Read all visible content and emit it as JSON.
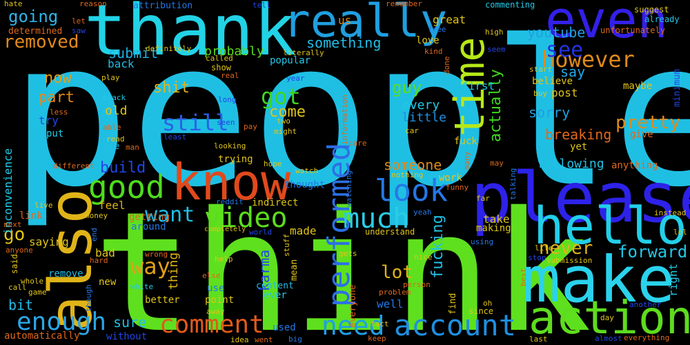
{
  "words": [
    {
      "text": "people",
      "color": "#1fbfe3"
    },
    {
      "text": "think",
      "color": "#5ee01e"
    },
    {
      "text": "thank",
      "color": "#22d3e6"
    },
    {
      "text": "please",
      "color": "#2d22e8"
    },
    {
      "text": "make",
      "color": "#2ad2ec"
    },
    {
      "text": "know",
      "color": "#e04a1c"
    },
    {
      "text": "also",
      "color": "#e0b418"
    },
    {
      "text": "really",
      "color": "#1f9fe0"
    },
    {
      "text": "even",
      "color": "#3320e8"
    },
    {
      "text": "hello",
      "color": "#22cfe8"
    },
    {
      "text": "action",
      "color": "#5edc1e"
    },
    {
      "text": "time",
      "color": "#b6e818"
    },
    {
      "text": "good",
      "color": "#4fdc1e"
    },
    {
      "text": "look",
      "color": "#2478e6"
    },
    {
      "text": "account",
      "color": "#1f8fe0"
    },
    {
      "text": "performed",
      "color": "#2c6fe6"
    },
    {
      "text": "comment",
      "color": "#e05a1c"
    },
    {
      "text": "enough",
      "color": "#2aa6e6"
    },
    {
      "text": "need",
      "color": "#1f9fe6"
    },
    {
      "text": "video",
      "color": "#5cdc1e"
    },
    {
      "text": "much",
      "color": "#2acce6"
    },
    {
      "text": "however",
      "color": "#e08a1c"
    },
    {
      "text": "see",
      "color": "#2232e0"
    },
    {
      "text": "still",
      "color": "#2a60e6"
    },
    {
      "text": "want",
      "color": "#22bde6"
    },
    {
      "text": "way",
      "color": "#e0a018"
    },
    {
      "text": "going",
      "color": "#2eb4ea"
    },
    {
      "text": "removed",
      "color": "#e08a1c"
    },
    {
      "text": "youtube",
      "color": "#1f9fe0"
    },
    {
      "text": "forward",
      "color": "#22c8e6"
    },
    {
      "text": "never",
      "color": "#e0b418"
    },
    {
      "text": "pretty",
      "color": "#e08a1c"
    },
    {
      "text": "breaking",
      "color": "#e0681c"
    },
    {
      "text": "actually",
      "color": "#3ed61e"
    },
    {
      "text": "got",
      "color": "#3ed61e"
    },
    {
      "text": "come",
      "color": "#e0c418"
    },
    {
      "text": "shit",
      "color": "#e0b418"
    },
    {
      "text": "part",
      "color": "#e08a1c"
    },
    {
      "text": "now",
      "color": "#e0a018"
    },
    {
      "text": "submit",
      "color": "#1faee0"
    },
    {
      "text": "something",
      "color": "#22bde6"
    },
    {
      "text": "probably",
      "color": "#5cdc1e"
    },
    {
      "text": "say",
      "color": "#22a8e6"
    },
    {
      "text": "sorry",
      "color": "#1f9fe0"
    },
    {
      "text": "guy",
      "color": "#5cdc1e"
    },
    {
      "text": "lot",
      "color": "#e0b418"
    },
    {
      "text": "fucking",
      "color": "#22c0e6"
    },
    {
      "text": "karma",
      "color": "#2246e6"
    },
    {
      "text": "someone",
      "color": "#e08a1c"
    },
    {
      "text": "following",
      "color": "#22c0e6"
    },
    {
      "text": "build",
      "color": "#2246e6"
    },
    {
      "text": "go",
      "color": "#e0c418"
    },
    {
      "text": "bit",
      "color": "#22bde6"
    },
    {
      "text": "sure",
      "color": "#22bde6"
    },
    {
      "text": "thing",
      "color": "#e0b418"
    },
    {
      "text": "inconvenience",
      "color": "#22c8e6"
    },
    {
      "text": "every",
      "color": "#22c8e6"
    },
    {
      "text": "little",
      "color": "#1f8fe0"
    },
    {
      "text": "first",
      "color": "#22c8e6"
    },
    {
      "text": "great",
      "color": "#e0c418"
    },
    {
      "text": "us",
      "color": "#e08a1c"
    },
    {
      "text": "determined",
      "color": "#e06a1c"
    },
    {
      "text": "popular",
      "color": "#22c8e6"
    },
    {
      "text": "love",
      "color": "#e0c418"
    },
    {
      "text": "old",
      "color": "#e0c418"
    },
    {
      "text": "back",
      "color": "#22bde6"
    },
    {
      "text": "try",
      "color": "#2246e6"
    },
    {
      "text": "put",
      "color": "#22c8e6"
    },
    {
      "text": "page",
      "color": "#22bde6"
    },
    {
      "text": "feel",
      "color": "#e0b418"
    },
    {
      "text": "getting",
      "color": "#e0681c"
    },
    {
      "text": "around",
      "color": "#2278e6"
    },
    {
      "text": "saying",
      "color": "#e0c418"
    },
    {
      "text": "link",
      "color": "#e0681c"
    },
    {
      "text": "made",
      "color": "#e0c418"
    },
    {
      "text": "take",
      "color": "#e0c418"
    },
    {
      "text": "making",
      "color": "#e0c418"
    },
    {
      "text": "believe",
      "color": "#e0c418"
    },
    {
      "text": "maybe",
      "color": "#e0c418"
    },
    {
      "text": "post",
      "color": "#e0c418"
    },
    {
      "text": "yet",
      "color": "#e0c418"
    },
    {
      "text": "give",
      "color": "#e0681c"
    },
    {
      "text": "anything",
      "color": "#e0681c"
    },
    {
      "text": "right",
      "color": "#22c8e6"
    },
    {
      "text": "bad",
      "color": "#e0c418"
    },
    {
      "text": "remove",
      "color": "#22bde6"
    },
    {
      "text": "new",
      "color": "#e0c418"
    },
    {
      "text": "better",
      "color": "#e0c418"
    },
    {
      "text": "point",
      "color": "#e0c418"
    },
    {
      "text": "ever",
      "color": "#22c8e6"
    },
    {
      "text": "content",
      "color": "#22bde6"
    },
    {
      "text": "use",
      "color": "#2278e6"
    },
    {
      "text": "well",
      "color": "#2278e6"
    },
    {
      "text": "find",
      "color": "#e0c418"
    },
    {
      "text": "used",
      "color": "#2278e6"
    },
    {
      "text": "without",
      "color": "#2246e6"
    },
    {
      "text": "automatically",
      "color": "#e0681c"
    },
    {
      "text": "fuck",
      "color": "#e0c418"
    },
    {
      "text": "trying",
      "color": "#e0c418"
    },
    {
      "text": "thought",
      "color": "#2278e6"
    },
    {
      "text": "indirect",
      "color": "#e0c418"
    },
    {
      "text": "work",
      "color": "#e0c418"
    },
    {
      "text": "everyone",
      "color": "#e0681c"
    },
    {
      "text": "mean",
      "color": "#e0c418"
    },
    {
      "text": "attribution",
      "color": "#2278e6"
    },
    {
      "text": "commenting",
      "color": "#22c8e6"
    },
    {
      "text": "already",
      "color": "#22c8e6"
    },
    {
      "text": "suggest",
      "color": "#e0c418"
    },
    {
      "text": "unfortunately",
      "color": "#e0681c"
    },
    {
      "text": "minimum",
      "color": "#2246e6"
    },
    {
      "text": "hate",
      "color": "#e0c418"
    },
    {
      "text": "reason",
      "color": "#e0681c"
    },
    {
      "text": "tell",
      "color": "#2246e6"
    },
    {
      "text": "remember",
      "color": "#e0681c"
    },
    {
      "text": "let",
      "color": "#e0681c"
    },
    {
      "text": "saw",
      "color": "#2246e6"
    },
    {
      "text": "free",
      "color": "#2278e6"
    },
    {
      "text": "high",
      "color": "#e0c418"
    },
    {
      "text": "kind",
      "color": "#e0681c"
    },
    {
      "text": "definitely",
      "color": "#e0c418"
    },
    {
      "text": "called",
      "color": "#e0c418"
    },
    {
      "text": "literally",
      "color": "#e0c418"
    },
    {
      "text": "play",
      "color": "#e0c418"
    },
    {
      "text": "real",
      "color": "#e0681c"
    },
    {
      "text": "year",
      "color": "#2246e6"
    },
    {
      "text": "show",
      "color": "#e0c418"
    },
    {
      "text": "long",
      "color": "#2246e6"
    },
    {
      "text": "black",
      "color": "#22c8e6"
    },
    {
      "text": "less",
      "color": "#e0681c"
    },
    {
      "text": "able",
      "color": "#e0681c"
    },
    {
      "text": "read",
      "color": "#e0c418"
    },
    {
      "text": "man",
      "color": "#e0681c"
    },
    {
      "text": "seen",
      "color": "#2246e6"
    },
    {
      "text": "least",
      "color": "#2246e6"
    },
    {
      "text": "pay",
      "color": "#e0681c"
    },
    {
      "text": "two",
      "color": "#e0c418"
    },
    {
      "text": "might",
      "color": "#e0c418"
    },
    {
      "text": "looking",
      "color": "#e0c418"
    },
    {
      "text": "care",
      "color": "#e0681c"
    },
    {
      "text": "car",
      "color": "#e0c418"
    },
    {
      "text": "information",
      "color": "#e0681c"
    },
    {
      "text": "hope",
      "color": "#e0c418"
    },
    {
      "text": "watch",
      "color": "#e0c418"
    },
    {
      "text": "watching",
      "color": "#2278e6"
    },
    {
      "text": "nothing",
      "color": "#e0c418"
    },
    {
      "text": "funny",
      "color": "#e0681c"
    },
    {
      "text": "many",
      "color": "#e0681c"
    },
    {
      "text": "may",
      "color": "#e0681c"
    },
    {
      "text": "talking",
      "color": "#2278e6"
    },
    {
      "text": "far",
      "color": "#e0c418"
    },
    {
      "text": "different",
      "color": "#e0681c"
    },
    {
      "text": "live",
      "color": "#e0c418"
    },
    {
      "text": "money",
      "color": "#e0c418"
    },
    {
      "text": "next",
      "color": "#e0681c"
    },
    {
      "text": "end",
      "color": "#2278e6"
    },
    {
      "text": "reddit",
      "color": "#2278e6"
    },
    {
      "text": "completely",
      "color": "#e0c418"
    },
    {
      "text": "world",
      "color": "#2246e6"
    },
    {
      "text": "understand",
      "color": "#e0c418"
    },
    {
      "text": "yeah",
      "color": "#2278e6"
    },
    {
      "text": "using",
      "color": "#2278e6"
    },
    {
      "text": "instead",
      "color": "#e0c418"
    },
    {
      "text": "lol",
      "color": "#e0c418"
    },
    {
      "text": "life",
      "color": "#e0c418"
    },
    {
      "text": "stop",
      "color": "#2246e6"
    },
    {
      "text": "submission",
      "color": "#e0c418"
    },
    {
      "text": "anyone",
      "color": "#e0681c"
    },
    {
      "text": "wrong",
      "color": "#e0681c"
    },
    {
      "text": "hard",
      "color": "#e0681c"
    },
    {
      "text": "said",
      "color": "#e0c418"
    },
    {
      "text": "whole",
      "color": "#e0c418"
    },
    {
      "text": "call",
      "color": "#e0c418"
    },
    {
      "text": "game",
      "color": "#e0c418"
    },
    {
      "text": "though",
      "color": "#2278e6"
    },
    {
      "text": "white",
      "color": "#22c8e6"
    },
    {
      "text": "help",
      "color": "#e0c418"
    },
    {
      "text": "else",
      "color": "#e0681c"
    },
    {
      "text": "away",
      "color": "#e0c418"
    },
    {
      "text": "stuff",
      "color": "#e0c418"
    },
    {
      "text": "gets",
      "color": "#e0c418"
    },
    {
      "text": "nice",
      "color": "#e0c418"
    },
    {
      "text": "person",
      "color": "#e0681c"
    },
    {
      "text": "problem",
      "color": "#e0681c"
    },
    {
      "text": "best",
      "color": "#e0681c"
    },
    {
      "text": "oh",
      "color": "#e0c418"
    },
    {
      "text": "since",
      "color": "#e0c418"
    },
    {
      "text": "another",
      "color": "#2246e6"
    },
    {
      "text": "day",
      "color": "#e0c418"
    },
    {
      "text": "fact",
      "color": "#e0c418"
    },
    {
      "text": "idea",
      "color": "#e0c418"
    },
    {
      "text": "went",
      "color": "#e0681c"
    },
    {
      "text": "big",
      "color": "#2278e6"
    },
    {
      "text": "keep",
      "color": "#e0681c"
    },
    {
      "text": "last",
      "color": "#e0c418"
    },
    {
      "text": "almost",
      "color": "#2246e6"
    },
    {
      "text": "everything",
      "color": "#e0681c"
    },
    {
      "text": "start",
      "color": "#e0c418"
    },
    {
      "text": "buy",
      "color": "#e0c418"
    },
    {
      "text": "seem",
      "color": "#2246e6"
    },
    {
      "text": "done",
      "color": "#e0681c"
    }
  ]
}
